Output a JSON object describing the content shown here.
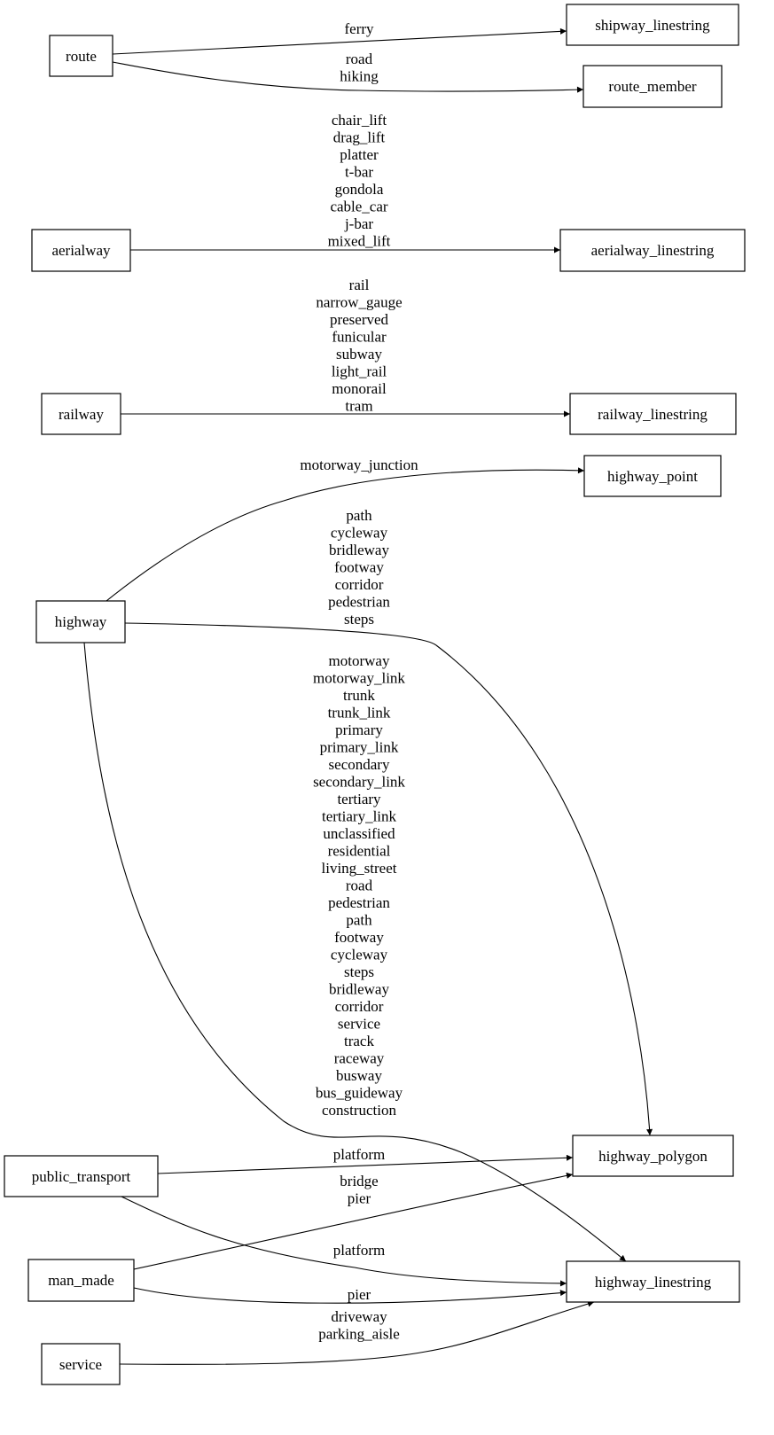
{
  "nodes": {
    "route": "route",
    "shipway_linestring": "shipway_linestring",
    "route_member": "route_member",
    "aerialway": "aerialway",
    "aerialway_linestring": "aerialway_linestring",
    "railway": "railway",
    "railway_linestring": "railway_linestring",
    "highway_point": "highway_point",
    "highway": "highway",
    "highway_polygon": "highway_polygon",
    "highway_linestring": "highway_linestring",
    "public_transport": "public_transport",
    "man_made": "man_made",
    "service": "service"
  },
  "edges": [
    {
      "from": "route",
      "to": "shipway_linestring",
      "labels": [
        "ferry"
      ]
    },
    {
      "from": "route",
      "to": "route_member",
      "labels": [
        "road",
        "hiking"
      ]
    },
    {
      "from": "aerialway",
      "to": "aerialway_linestring",
      "labels": [
        "chair_lift",
        "drag_lift",
        "platter",
        "t-bar",
        "gondola",
        "cable_car",
        "j-bar",
        "mixed_lift"
      ]
    },
    {
      "from": "railway",
      "to": "railway_linestring",
      "labels": [
        "rail",
        "narrow_gauge",
        "preserved",
        "funicular",
        "subway",
        "light_rail",
        "monorail",
        "tram"
      ]
    },
    {
      "from": "highway",
      "to": "highway_point",
      "labels": [
        "motorway_junction"
      ]
    },
    {
      "from": "highway",
      "to": "highway_polygon",
      "labels": [
        "path",
        "cycleway",
        "bridleway",
        "footway",
        "corridor",
        "pedestrian",
        "steps"
      ]
    },
    {
      "from": "highway",
      "to": "highway_linestring",
      "labels": [
        "motorway",
        "motorway_link",
        "trunk",
        "trunk_link",
        "primary",
        "primary_link",
        "secondary",
        "secondary_link",
        "tertiary",
        "tertiary_link",
        "unclassified",
        "residential",
        "living_street",
        "road",
        "pedestrian",
        "path",
        "footway",
        "cycleway",
        "steps",
        "bridleway",
        "corridor",
        "service",
        "track",
        "raceway",
        "busway",
        "bus_guideway",
        "construction"
      ]
    },
    {
      "from": "public_transport",
      "to": "highway_polygon",
      "labels": [
        "platform"
      ]
    },
    {
      "from": "public_transport",
      "to": "highway_linestring",
      "labels": [
        "platform"
      ]
    },
    {
      "from": "man_made",
      "to": "highway_polygon",
      "labels": [
        "bridge",
        "pier"
      ]
    },
    {
      "from": "man_made",
      "to": "highway_linestring",
      "labels": [
        "pier"
      ]
    },
    {
      "from": "service",
      "to": "highway_linestring",
      "labels": [
        "driveway",
        "parking_aisle"
      ]
    }
  ]
}
